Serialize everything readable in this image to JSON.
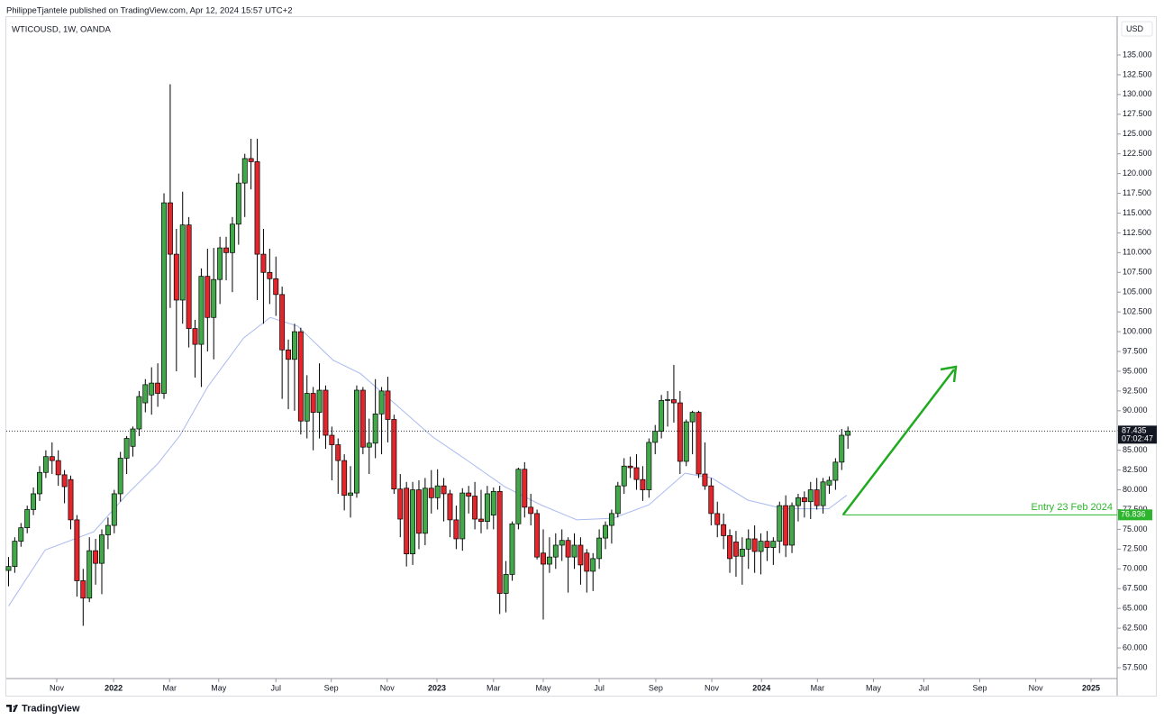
{
  "header": {
    "published": "PhilippeTjantele published on TradingView.com, Apr 12, 2024 15:57 UTC+2"
  },
  "footer": {
    "brand": "TradingView"
  },
  "chart_data": {
    "type": "candlestick",
    "title": "WTICOUSD, 1W, OANDA",
    "currency": "USD",
    "up_color": "#43a84a",
    "down_color": "#e2262b",
    "open": [
      69.8,
      70.3,
      73.5,
      75.2,
      77.5,
      79.5,
      82.2,
      84.2,
      83.7,
      81.9,
      81.3,
      76.2,
      68.5,
      66.3,
      72.3,
      70.7,
      74.3,
      75.5,
      79.5,
      84.0,
      85.5,
      87.7,
      91.0,
      92.0,
      93.5,
      92.2,
      116.3,
      109.8,
      104.0,
      113.5,
      100.4,
      98.4,
      107.0,
      101.8,
      106.6,
      110.6,
      110.0,
      113.6,
      118.8,
      121.9,
      121.5,
      109.8,
      107.5,
      106.7,
      104.7,
      97.7,
      96.5,
      100.0,
      88.7,
      92.2,
      89.8,
      92.6,
      86.9,
      85.7,
      83.7,
      79.3,
      79.6,
      92.6,
      85.4,
      85.9,
      89.6,
      92.5,
      88.9,
      80.1,
      80.2,
      71.9,
      80.0,
      74.5,
      80.2,
      79.0,
      80.5,
      79.5,
      76.2,
      73.8,
      79.6,
      79.2,
      76.3,
      76.0,
      76.8,
      79.8,
      66.9,
      69.3,
      75.7,
      82.6,
      77.8,
      77.0,
      72.0,
      70.6,
      71.5,
      73.0,
      73.6,
      71.5,
      73.0,
      72.0,
      69.7,
      71.3,
      73.9,
      75.5,
      77.0,
      80.5,
      83.0,
      82.8,
      81.3,
      80.0,
      86.0,
      87.4,
      91.3,
      91.4,
      91.0,
      83.6,
      88.6,
      89.8,
      82.0,
      80.5,
      77.0,
      75.6,
      74.2,
      73.4,
      71.6,
      72.5,
      73.8,
      72.2,
      73.5,
      72.7,
      73.5,
      78.0,
      73.0,
      78.0,
      79.0,
      78.5,
      80.0,
      78.0,
      80.6,
      81.2,
      83.5,
      86.9
    ],
    "high": [
      71.5,
      74.0,
      75.8,
      78.0,
      80.3,
      83.0,
      85.0,
      86.0,
      85.0,
      82.5,
      81.8,
      76.8,
      70.0,
      74.0,
      73.8,
      75.0,
      76.5,
      80.0,
      84.8,
      86.8,
      88.0,
      92.5,
      94.0,
      95.5,
      96.0,
      117.5,
      131.3,
      113.0,
      117.7,
      114.5,
      101.5,
      108.0,
      110.5,
      110.6,
      112.0,
      112.0,
      114.5,
      120.0,
      122.5,
      124.4,
      124.4,
      113.0,
      110.5,
      109.5,
      105.7,
      99.0,
      101.0,
      100.5,
      94.5,
      93.0,
      96.0,
      93.2,
      88.0,
      86.5,
      84.5,
      83.0,
      93.2,
      93.0,
      89.0,
      94.0,
      93.0,
      94.3,
      89.5,
      82.0,
      81.0,
      81.0,
      81.2,
      81.5,
      82.5,
      82.6,
      81.5,
      80.0,
      78.0,
      80.2,
      80.5,
      81.0,
      80.0,
      80.5,
      80.3,
      80.5,
      71.0,
      76.0,
      82.8,
      83.5,
      79.5,
      77.5,
      75.0,
      74.0,
      74.5,
      75.0,
      74.0,
      74.5,
      74.0,
      72.5,
      72.0,
      75.0,
      76.0,
      77.5,
      81.0,
      84.0,
      84.2,
      84.5,
      83.0,
      86.5,
      88.2,
      92.0,
      92.5,
      95.8,
      92.5,
      88.9,
      90.0,
      90.0,
      86.0,
      81.5,
      78.5,
      77.0,
      75.0,
      74.8,
      74.0,
      75.0,
      75.5,
      74.5,
      74.8,
      74.0,
      78.5,
      79.3,
      78.4,
      79.5,
      79.8,
      81.0,
      81.5,
      81.5,
      81.7,
      84.0,
      87.7,
      88.0
    ],
    "low": [
      67.8,
      69.5,
      72.8,
      74.5,
      76.8,
      78.6,
      81.5,
      82.0,
      80.5,
      78.3,
      75.0,
      66.5,
      62.8,
      65.8,
      68.0,
      66.8,
      72.5,
      74.5,
      78.5,
      82.0,
      84.2,
      86.8,
      89.8,
      89.5,
      90.5,
      91.5,
      103.0,
      95.0,
      101.0,
      98.0,
      94.2,
      93.0,
      97.5,
      96.5,
      103.5,
      106.5,
      105.0,
      111.0,
      114.5,
      118.0,
      104.0,
      101.0,
      103.5,
      102.0,
      91.5,
      90.2,
      90.0,
      87.0,
      86.5,
      85.0,
      86.5,
      85.2,
      81.2,
      79.5,
      77.4,
      76.5,
      79.0,
      84.5,
      82.0,
      84.0,
      84.5,
      86.0,
      79.5,
      74.0,
      70.3,
      70.5,
      72.5,
      73.0,
      77.0,
      77.5,
      76.0,
      74.0,
      72.5,
      72.3,
      77.0,
      75.0,
      74.5,
      75.0,
      75.0,
      64.3,
      64.5,
      68.5,
      75.0,
      76.5,
      75.5,
      71.2,
      63.6,
      69.5,
      70.0,
      71.0,
      67.0,
      70.0,
      68.0,
      67.0,
      67.2,
      70.0,
      72.5,
      73.2,
      76.5,
      79.5,
      81.5,
      80.0,
      78.6,
      79.0,
      84.5,
      86.5,
      88.0,
      88.5,
      82.0,
      83.0,
      84.5,
      81.5,
      80.0,
      75.5,
      74.0,
      72.5,
      69.5,
      69.0,
      68.0,
      70.0,
      69.5,
      69.3,
      71.0,
      70.5,
      72.0,
      71.5,
      72.0,
      76.0,
      76.5,
      76.3,
      77.5,
      77.0,
      79.5,
      80.0,
      82.5,
      85.2
    ],
    "close": [
      70.3,
      73.5,
      75.2,
      77.5,
      79.5,
      82.2,
      84.2,
      83.7,
      81.9,
      80.4,
      76.2,
      68.5,
      66.3,
      72.3,
      70.7,
      74.3,
      75.5,
      79.5,
      84.0,
      86.5,
      87.7,
      91.8,
      93.3,
      93.5,
      92.2,
      116.3,
      109.8,
      104.0,
      113.5,
      100.4,
      98.4,
      107.0,
      101.8,
      106.6,
      110.6,
      110.0,
      113.6,
      118.8,
      121.9,
      121.5,
      109.8,
      107.5,
      106.7,
      104.7,
      97.7,
      96.5,
      100.0,
      88.7,
      92.2,
      89.8,
      92.6,
      86.9,
      85.7,
      83.7,
      79.3,
      79.6,
      92.6,
      85.4,
      85.9,
      89.6,
      92.5,
      88.9,
      80.1,
      76.3,
      71.9,
      80.0,
      74.5,
      80.2,
      79.0,
      80.5,
      79.5,
      76.2,
      73.8,
      79.6,
      79.2,
      76.3,
      76.0,
      79.5,
      79.8,
      66.9,
      69.3,
      75.7,
      82.6,
      77.8,
      77.0,
      71.5,
      70.6,
      71.5,
      73.0,
      73.6,
      71.5,
      73.0,
      70.5,
      69.7,
      71.3,
      73.9,
      75.5,
      77.0,
      80.5,
      83.0,
      82.8,
      81.3,
      80.0,
      86.0,
      87.4,
      91.3,
      91.4,
      91.0,
      83.6,
      88.6,
      89.8,
      82.0,
      80.5,
      77.0,
      75.6,
      74.2,
      71.3,
      71.6,
      72.5,
      73.8,
      72.2,
      73.5,
      72.7,
      73.5,
      78.0,
      73.0,
      78.0,
      79.0,
      78.5,
      80.0,
      78.0,
      81.0,
      81.2,
      83.5,
      86.9,
      87.435
    ],
    "lines": [
      {
        "color": "#a9baf0",
        "x": [
          0,
          5.9,
          13.7,
          18.9,
          24,
          27.6,
          32,
          37.8,
          42.1,
          46.5,
          52.2,
          56.6,
          62.4,
          68.2,
          74,
          79.8,
          85.6,
          91.4,
          97.2,
          103,
          108.8,
          113.1,
          118.9,
          124.7,
          131.9,
          134.8
        ],
        "values": [
          65.3,
          72.4,
          74.7,
          79.3,
          83.3,
          86.9,
          93.0,
          99.2,
          101.8,
          100.7,
          96.4,
          94.7,
          90.7,
          86.7,
          83.6,
          80.4,
          78.1,
          76.2,
          76.4,
          78.1,
          82.1,
          81.5,
          78.7,
          77.6,
          77.6,
          79.3
        ]
      }
    ],
    "last_price": 87.435,
    "countdown": "07:02:47",
    "entry": {
      "label": "Entry 23 Feb 2024",
      "value": 76.836,
      "color": "#2db52d"
    },
    "xlim": [
      -0.36,
      178.3
    ],
    "xticks": [
      {
        "value": 7.75,
        "label": "Nov"
      },
      {
        "value": 16.9,
        "label": "2022"
      },
      {
        "value": 25.9,
        "label": "Mar"
      },
      {
        "value": 33.8,
        "label": "May"
      },
      {
        "value": 43.0,
        "label": "Jul"
      },
      {
        "value": 51.9,
        "label": "Sep"
      },
      {
        "value": 60.9,
        "label": "Nov"
      },
      {
        "value": 68.9,
        "label": "2023"
      },
      {
        "value": 78.0,
        "label": "Mar"
      },
      {
        "value": 86.0,
        "label": "May"
      },
      {
        "value": 95.0,
        "label": "Jul"
      },
      {
        "value": 104.1,
        "label": "Sep"
      },
      {
        "value": 113.1,
        "label": "Nov"
      },
      {
        "value": 121.1,
        "label": "2024"
      },
      {
        "value": 130.1,
        "label": "Mar"
      },
      {
        "value": 139.1,
        "label": "May"
      },
      {
        "value": 147.2,
        "label": "Jul"
      },
      {
        "value": 156.2,
        "label": "Sep"
      },
      {
        "value": 165.2,
        "label": "Nov"
      },
      {
        "value": 174.1,
        "label": "2025"
      }
    ],
    "ylim": [
      56.13,
      139.9
    ],
    "yticks": [
      {
        "value": 57.5,
        "label": "57.500"
      },
      {
        "value": 60,
        "label": "60.000"
      },
      {
        "value": 62.5,
        "label": "62.500"
      },
      {
        "value": 65,
        "label": "65.000"
      },
      {
        "value": 67.5,
        "label": "67.500"
      },
      {
        "value": 70,
        "label": "70.000"
      },
      {
        "value": 72.5,
        "label": "72.500"
      },
      {
        "value": 75,
        "label": "75.000"
      },
      {
        "value": 77.5,
        "label": "77.500"
      },
      {
        "value": 80,
        "label": "80.000"
      },
      {
        "value": 82.5,
        "label": "82.500"
      },
      {
        "value": 85,
        "label": "85.000"
      },
      {
        "value": 87.5,
        "label": "87.500"
      },
      {
        "value": 90,
        "label": "90.000"
      },
      {
        "value": 92.5,
        "label": "92.500"
      },
      {
        "value": 95,
        "label": "95.000"
      },
      {
        "value": 97.5,
        "label": "97.500"
      },
      {
        "value": 100,
        "label": "100.000"
      },
      {
        "value": 102.5,
        "label": "102.500"
      },
      {
        "value": 105,
        "label": "105.000"
      },
      {
        "value": 107.5,
        "label": "107.500"
      },
      {
        "value": 110,
        "label": "110.000"
      },
      {
        "value": 112.5,
        "label": "112.500"
      },
      {
        "value": 115,
        "label": "115.000"
      },
      {
        "value": 117.5,
        "label": "117.500"
      },
      {
        "value": 120,
        "label": "120.000"
      },
      {
        "value": 122.5,
        "label": "122.500"
      },
      {
        "value": 125,
        "label": "125.000"
      },
      {
        "value": 127.5,
        "label": "127.500"
      },
      {
        "value": 130,
        "label": "130.000"
      },
      {
        "value": 132.5,
        "label": "132.500"
      },
      {
        "value": 135,
        "label": "135.000"
      }
    ]
  }
}
